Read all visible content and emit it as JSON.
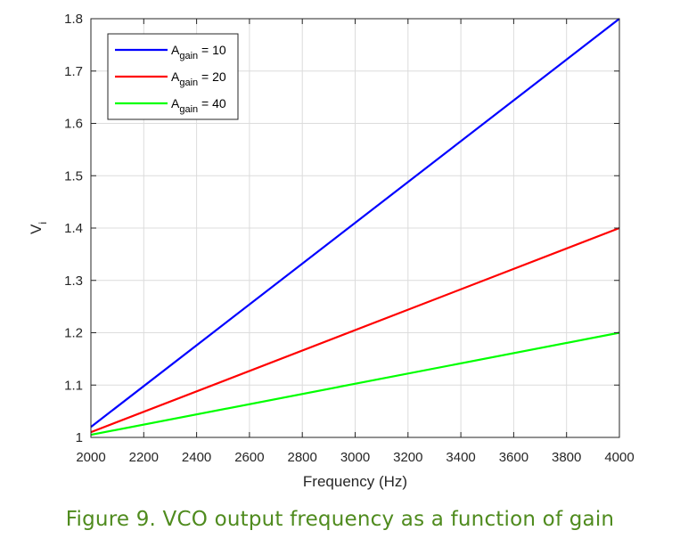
{
  "chart_data": {
    "type": "line",
    "title": "",
    "xlabel": "Frequency (Hz)",
    "ylabel": "V",
    "ylabel_sub": "i",
    "xlim": [
      2000,
      4000
    ],
    "ylim": [
      1,
      1.8
    ],
    "xticks": [
      2000,
      2200,
      2400,
      2600,
      2800,
      3000,
      3200,
      3400,
      3600,
      3800,
      4000
    ],
    "yticks": [
      1,
      1.1,
      1.2,
      1.3,
      1.4,
      1.5,
      1.6,
      1.7,
      1.8
    ],
    "ytick_labels": [
      "1",
      "1.1",
      "1.2",
      "1.3",
      "1.4",
      "1.5",
      "1.6",
      "1.7",
      "1.8"
    ],
    "grid": true,
    "legend_position": "top-left",
    "series": [
      {
        "name": "A",
        "name_sub": "gain",
        "name_suffix": " = 10",
        "color": "#0000ff",
        "x": [
          2000,
          4000
        ],
        "values": [
          1.02,
          1.8
        ]
      },
      {
        "name": "A",
        "name_sub": "gain",
        "name_suffix": " = 20",
        "color": "#ff0000",
        "x": [
          2000,
          4000
        ],
        "values": [
          1.01,
          1.4
        ]
      },
      {
        "name": "A",
        "name_sub": "gain",
        "name_suffix": " = 40",
        "color": "#00ff00",
        "x": [
          2000,
          4000
        ],
        "values": [
          1.005,
          1.2
        ]
      }
    ]
  },
  "caption": {
    "text": "Figure 9. VCO output frequency as a function of gain",
    "color": "#4f8b1e"
  }
}
